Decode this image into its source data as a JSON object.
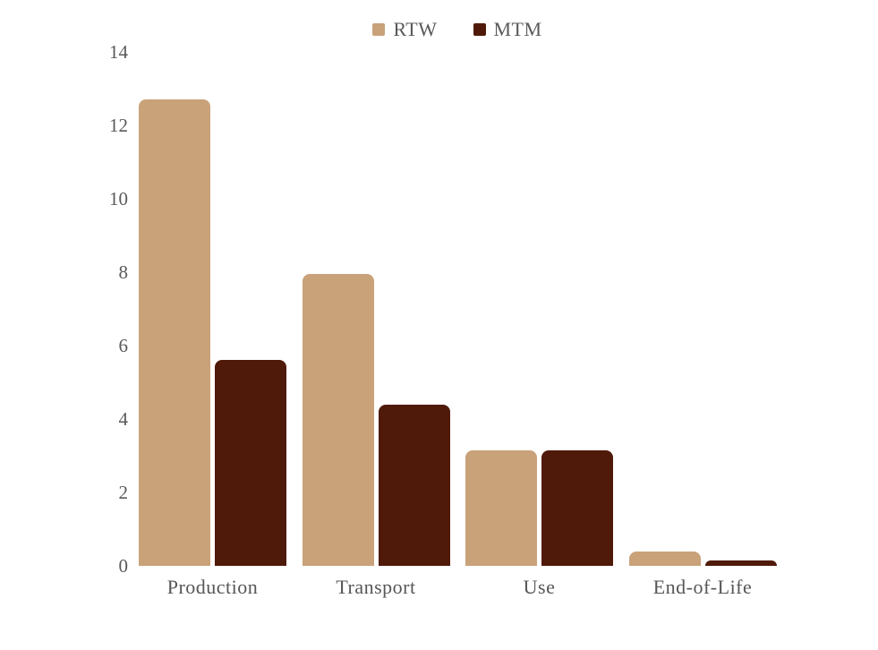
{
  "chart_data": {
    "type": "bar",
    "title": "",
    "xlabel": "",
    "ylabel": "",
    "categories": [
      "Production",
      "Transport",
      "Use",
      "End-of-Life"
    ],
    "series": [
      {
        "name": "RTW",
        "color": "#C9A27A",
        "values": [
          12.7,
          7.95,
          3.15,
          0.4
        ]
      },
      {
        "name": "MTM",
        "color": "#4F1A0A",
        "values": [
          5.6,
          4.4,
          3.15,
          0.15
        ]
      }
    ],
    "ylim": [
      0,
      14
    ],
    "yticks": [
      0,
      2,
      4,
      6,
      8,
      10,
      12,
      14
    ],
    "grid": false,
    "axis_lines": false,
    "legend_position": "top-center"
  },
  "colors": {
    "axis_text": "#595959",
    "category_text": "#565656",
    "background": "#ffffff"
  }
}
